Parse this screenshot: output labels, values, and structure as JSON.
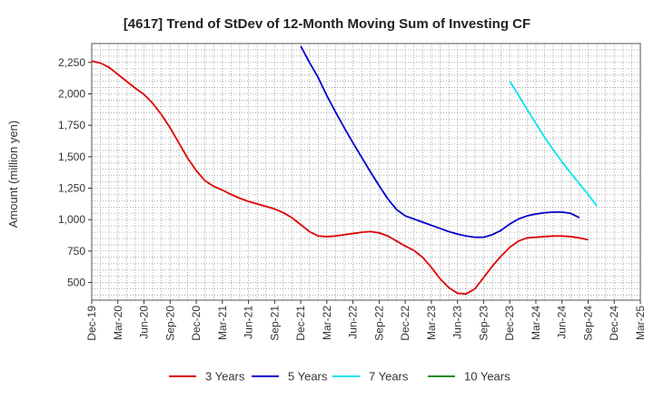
{
  "chart_data": {
    "type": "line",
    "title": "[4617]  Trend of StDev of 12-Month Moving Sum of Investing CF",
    "ylabel": "Amount (million yen)",
    "xlabel": "",
    "ylim": [
      360,
      2400
    ],
    "y_ticks": [
      500,
      750,
      1000,
      1250,
      1500,
      1750,
      2000,
      2250
    ],
    "y_tick_labels": [
      "500",
      "750",
      "1,000",
      "1,250",
      "1,500",
      "1,750",
      "2,000",
      "2,250"
    ],
    "x_tick_labels": [
      "Dec-19",
      "Mar-20",
      "Jun-20",
      "Sep-20",
      "Dec-20",
      "Mar-21",
      "Jun-21",
      "Sep-21",
      "Dec-21",
      "Mar-22",
      "Jun-22",
      "Sep-22",
      "Dec-22",
      "Mar-23",
      "Jun-23",
      "Sep-23",
      "Dec-23",
      "Mar-24",
      "Jun-24",
      "Sep-24",
      "Dec-24",
      "Mar-25"
    ],
    "grid": true,
    "legend_position": "bottom",
    "series": [
      {
        "name": "3 Years",
        "color": "#dd0000",
        "start_index": 0,
        "values": [
          2260,
          2245,
          2210,
          2155,
          2100,
          2045,
          1995,
          1925,
          1835,
          1730,
          1610,
          1490,
          1390,
          1310,
          1265,
          1235,
          1200,
          1170,
          1145,
          1125,
          1105,
          1085,
          1055,
          1015,
          960,
          905,
          870,
          865,
          870,
          880,
          890,
          900,
          905,
          895,
          870,
          830,
          790,
          755,
          700,
          620,
          530,
          460,
          415,
          410,
          450,
          540,
          630,
          710,
          780,
          830,
          855,
          860,
          865,
          870,
          870,
          865,
          855,
          840
        ]
      },
      {
        "name": "5 Years",
        "color": "#0000cc",
        "start_index": 24,
        "values": [
          2380,
          2250,
          2130,
          1985,
          1855,
          1730,
          1610,
          1495,
          1380,
          1270,
          1165,
          1080,
          1030,
          1005,
          980,
          955,
          930,
          905,
          885,
          870,
          860,
          860,
          880,
          915,
          965,
          1005,
          1030,
          1045,
          1055,
          1060,
          1060,
          1050,
          1015
        ]
      },
      {
        "name": "7 Years",
        "color": "#00e5ee",
        "start_index": 48,
        "values": [
          2100,
          1990,
          1875,
          1765,
          1655,
          1555,
          1460,
          1370,
          1285,
          1200,
          1110
        ]
      },
      {
        "name": "10 Years",
        "color": "#228b22",
        "start_index": 0,
        "values": []
      }
    ]
  }
}
